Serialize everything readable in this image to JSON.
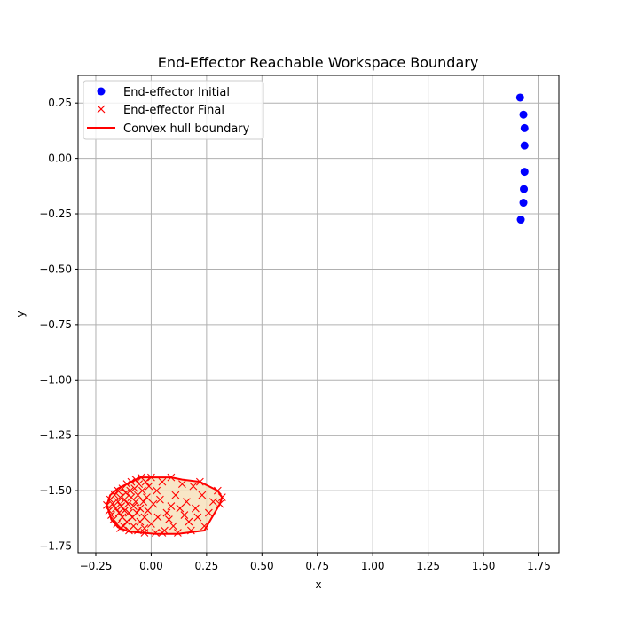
{
  "chart_data": {
    "type": "scatter",
    "title": "End-Effector Reachable Workspace Boundary",
    "xlabel": "x",
    "ylabel": "y",
    "xlim": [
      -0.33,
      1.84
    ],
    "ylim": [
      -1.78,
      0.375
    ],
    "xticks": [
      -0.25,
      0.0,
      0.25,
      0.5,
      0.75,
      1.0,
      1.25,
      1.5,
      1.75
    ],
    "xtick_labels": [
      "−0.25",
      "0.00",
      "0.25",
      "0.50",
      "0.75",
      "1.00",
      "1.25",
      "1.50",
      "1.75"
    ],
    "yticks": [
      0.25,
      0.0,
      -0.25,
      -0.5,
      -0.75,
      -1.0,
      -1.25,
      -1.5,
      -1.75
    ],
    "ytick_labels": [
      "0.25",
      "0.00",
      "−0.25",
      "−0.50",
      "−0.75",
      "−1.00",
      "−1.25",
      "−1.50",
      "−1.75"
    ],
    "grid": true,
    "legend_position": "upper-left",
    "series": [
      {
        "name": "End-effector Initial",
        "marker": "circle",
        "color": "#0000ff",
        "points": [
          [
            1.665,
            0.275
          ],
          [
            1.68,
            0.198
          ],
          [
            1.685,
            0.137
          ],
          [
            1.685,
            0.058
          ],
          [
            1.685,
            -0.06
          ],
          [
            1.682,
            -0.138
          ],
          [
            1.68,
            -0.2
          ],
          [
            1.668,
            -0.276
          ]
        ]
      },
      {
        "name": "End-effector Final",
        "marker": "x",
        "color": "#ff0000",
        "points": [
          [
            -0.2,
            -1.565
          ],
          [
            -0.19,
            -1.59
          ],
          [
            -0.185,
            -1.54
          ],
          [
            -0.18,
            -1.61
          ],
          [
            -0.175,
            -1.56
          ],
          [
            -0.17,
            -1.63
          ],
          [
            -0.165,
            -1.52
          ],
          [
            -0.16,
            -1.58
          ],
          [
            -0.155,
            -1.65
          ],
          [
            -0.15,
            -1.5
          ],
          [
            -0.15,
            -1.55
          ],
          [
            -0.145,
            -1.6
          ],
          [
            -0.14,
            -1.67
          ],
          [
            -0.14,
            -1.53
          ],
          [
            -0.135,
            -1.57
          ],
          [
            -0.13,
            -1.49
          ],
          [
            -0.13,
            -1.62
          ],
          [
            -0.125,
            -1.66
          ],
          [
            -0.12,
            -1.54
          ],
          [
            -0.12,
            -1.59
          ],
          [
            -0.115,
            -1.51
          ],
          [
            -0.11,
            -1.47
          ],
          [
            -0.11,
            -1.64
          ],
          [
            -0.105,
            -1.56
          ],
          [
            -0.1,
            -1.6
          ],
          [
            -0.1,
            -1.68
          ],
          [
            -0.095,
            -1.5
          ],
          [
            -0.09,
            -1.53
          ],
          [
            -0.09,
            -1.46
          ],
          [
            -0.085,
            -1.62
          ],
          [
            -0.08,
            -1.57
          ],
          [
            -0.08,
            -1.66
          ],
          [
            -0.075,
            -1.49
          ],
          [
            -0.07,
            -1.55
          ],
          [
            -0.07,
            -1.45
          ],
          [
            -0.065,
            -1.6
          ],
          [
            -0.06,
            -1.68
          ],
          [
            -0.06,
            -1.52
          ],
          [
            -0.055,
            -1.47
          ],
          [
            -0.05,
            -1.58
          ],
          [
            -0.05,
            -1.64
          ],
          [
            -0.045,
            -1.44
          ],
          [
            -0.04,
            -1.5
          ],
          [
            -0.035,
            -1.55
          ],
          [
            -0.03,
            -1.62
          ],
          [
            -0.03,
            -1.67
          ],
          [
            -0.025,
            -1.46
          ],
          [
            -0.02,
            -1.53
          ],
          [
            -0.015,
            -1.59
          ],
          [
            -0.01,
            -1.48
          ],
          [
            0.0,
            -1.44
          ],
          [
            0.0,
            -1.65
          ],
          [
            0.01,
            -1.56
          ],
          [
            0.02,
            -1.69
          ],
          [
            0.025,
            -1.5
          ],
          [
            0.03,
            -1.62
          ],
          [
            0.04,
            -1.54
          ],
          [
            0.05,
            -1.46
          ],
          [
            0.06,
            -1.68
          ],
          [
            0.07,
            -1.6
          ],
          [
            0.08,
            -1.63
          ],
          [
            0.09,
            -1.57
          ],
          [
            0.09,
            -1.44
          ],
          [
            0.1,
            -1.66
          ],
          [
            0.11,
            -1.52
          ],
          [
            0.12,
            -1.69
          ],
          [
            0.13,
            -1.58
          ],
          [
            0.14,
            -1.47
          ],
          [
            0.15,
            -1.61
          ],
          [
            0.16,
            -1.55
          ],
          [
            0.17,
            -1.64
          ],
          [
            0.18,
            -1.68
          ],
          [
            0.19,
            -1.48
          ],
          [
            0.2,
            -1.58
          ],
          [
            0.21,
            -1.62
          ],
          [
            0.22,
            -1.46
          ],
          [
            0.23,
            -1.52
          ],
          [
            0.24,
            -1.66
          ],
          [
            0.26,
            -1.6
          ],
          [
            0.28,
            -1.55
          ],
          [
            0.3,
            -1.5
          ],
          [
            0.32,
            -1.53
          ],
          [
            0.31,
            -1.56
          ],
          [
            -0.03,
            -1.69
          ],
          [
            0.05,
            -1.69
          ]
        ]
      },
      {
        "name": "Convex hull boundary",
        "marker": "line",
        "color": "#ff0000",
        "fill": "#f5deb3",
        "points": [
          [
            -0.05,
            -1.44
          ],
          [
            0.09,
            -1.44
          ],
          [
            0.14,
            -1.45
          ],
          [
            0.22,
            -1.46
          ],
          [
            0.3,
            -1.5
          ],
          [
            0.32,
            -1.53
          ],
          [
            0.31,
            -1.56
          ],
          [
            0.24,
            -1.68
          ],
          [
            0.12,
            -1.695
          ],
          [
            0.02,
            -1.695
          ],
          [
            -0.1,
            -1.685
          ],
          [
            -0.15,
            -1.665
          ],
          [
            -0.18,
            -1.63
          ],
          [
            -0.2,
            -1.565
          ],
          [
            -0.185,
            -1.52
          ],
          [
            -0.15,
            -1.49
          ],
          [
            -0.09,
            -1.46
          ]
        ]
      }
    ]
  }
}
